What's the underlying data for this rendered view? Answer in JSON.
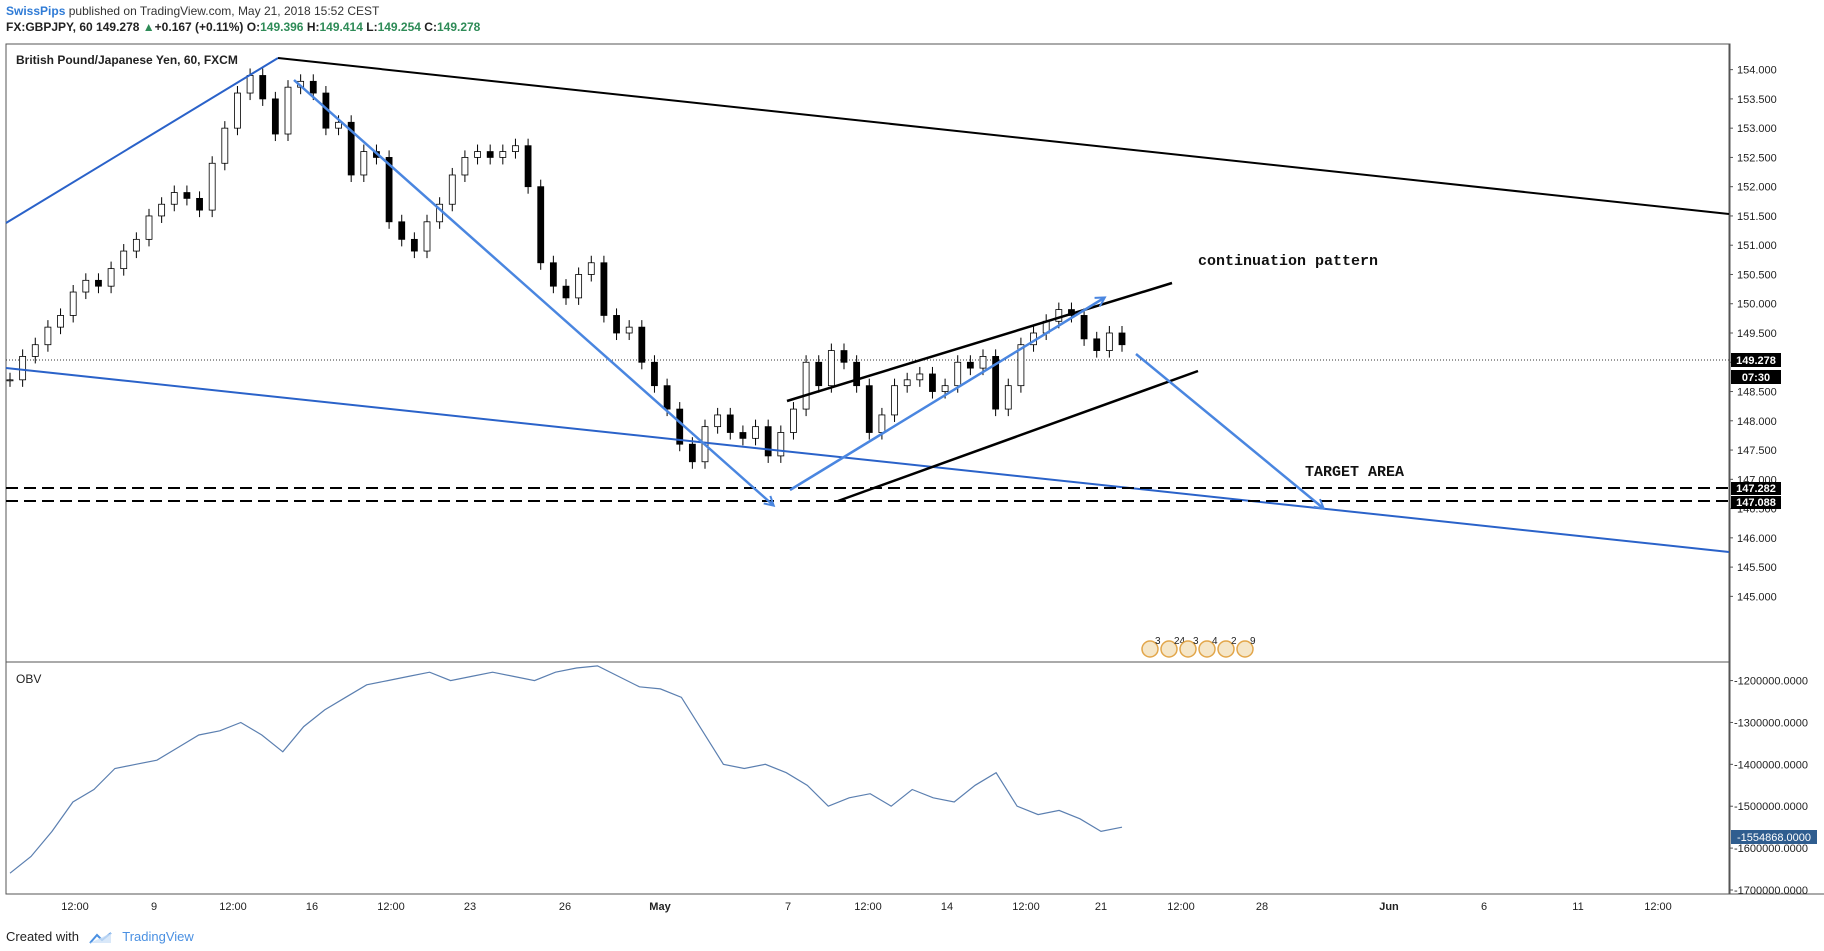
{
  "header": {
    "user": "SwissPips",
    "published": "published on TradingView.com, May 21, 2018 15:52 CEST",
    "symbol": "FX:GBPJPY, 60",
    "last": "149.278",
    "change": "+0.167 (+0.11%)",
    "open_label": "O:",
    "open": "149.396",
    "high_label": "H:",
    "high": "149.414",
    "low_label": "L:",
    "low": "149.254",
    "close_label": "C:",
    "close": "149.278"
  },
  "footer": {
    "created_with": "Created with",
    "brand": "TradingView"
  },
  "colors": {
    "up": "#2e8b57",
    "down": "#d9534f",
    "blue_line": "#3f7fdc",
    "obv_line": "#5b7fb0",
    "price_tag": "#000000",
    "obv_tag": "#2f5d8f"
  },
  "chart_data": [
    {
      "type": "line",
      "title": "British Pound/Japanese Yen, 60, FXCM",
      "ylim": [
        144.75,
        154.25
      ],
      "yticks": [
        "154.000",
        "153.500",
        "153.000",
        "152.500",
        "152.000",
        "151.500",
        "151.000",
        "150.500",
        "150.000",
        "149.500",
        "149.000",
        "148.500",
        "148.000",
        "147.500",
        "147.000",
        "146.500",
        "146.000",
        "145.500",
        "145.000"
      ],
      "xticks": [
        "12:00",
        "9",
        "12:00",
        "16",
        "12:00",
        "23",
        "26",
        "May",
        "7",
        "12:00",
        "14",
        "12:00",
        "21",
        "12:00",
        "28",
        "Jun",
        "6",
        "11",
        "12:00"
      ],
      "series": [
        {
          "values": [
            148.7,
            149.1,
            149.3,
            149.6,
            149.8,
            150.2,
            150.4,
            150.3,
            150.6,
            150.9,
            151.1,
            151.5,
            151.7,
            151.9,
            151.8,
            151.6,
            152.4,
            153.0,
            153.6,
            153.9,
            153.5,
            152.9,
            153.7,
            153.8,
            153.6,
            153.0,
            153.1,
            152.2,
            152.6,
            152.5,
            151.4,
            151.1,
            150.9,
            151.4,
            151.7,
            152.2,
            152.5,
            152.6,
            152.5,
            152.6,
            152.7,
            152.0,
            150.7,
            150.3,
            150.1,
            150.5,
            150.7,
            149.8,
            149.5,
            149.6,
            149.0,
            148.6,
            148.2,
            147.6,
            147.3,
            147.9,
            148.1,
            147.8,
            147.7,
            147.9,
            147.4,
            147.8,
            148.2,
            149.0,
            148.6,
            149.2,
            149.0,
            148.6,
            147.8,
            148.1,
            148.6,
            148.7,
            148.8,
            148.5,
            148.6,
            149.0,
            148.9,
            149.1,
            148.2,
            148.6,
            149.3,
            149.5,
            149.7,
            149.9,
            149.8,
            149.4,
            149.2,
            149.5,
            149.3
          ]
        }
      ],
      "last_price": "149.278",
      "countdown": "07:30",
      "levels": [
        "147.282",
        "147.088"
      ],
      "annotations": [
        "continuation pattern",
        "TARGET AREA"
      ],
      "event_labels": [
        "3",
        "24",
        "3",
        "4",
        "2",
        "9"
      ]
    },
    {
      "type": "line",
      "title": "OBV",
      "ylim": [
        -1700000,
        -1170000
      ],
      "yticks": [
        "-1200000.0000",
        "-1300000.0000",
        "-1400000.0000",
        "-1500000.0000",
        "-1600000.0000",
        "-1700000.0000"
      ],
      "series": [
        {
          "values": [
            -1660000,
            -1620000,
            -1560000,
            -1490000,
            -1460000,
            -1410000,
            -1400000,
            -1390000,
            -1360000,
            -1330000,
            -1320000,
            -1300000,
            -1330000,
            -1370000,
            -1310000,
            -1270000,
            -1240000,
            -1210000,
            -1200000,
            -1190000,
            -1180000,
            -1200000,
            -1190000,
            -1180000,
            -1190000,
            -1200000,
            -1180000,
            -1170000,
            -1165000,
            -1190000,
            -1215000,
            -1220000,
            -1240000,
            -1320000,
            -1400000,
            -1410000,
            -1400000,
            -1420000,
            -1450000,
            -1500000,
            -1480000,
            -1470000,
            -1500000,
            -1460000,
            -1480000,
            -1490000,
            -1450000,
            -1420000,
            -1500000,
            -1520000,
            -1510000,
            -1530000,
            -1560000,
            -1550000
          ]
        }
      ],
      "last_value": "-1554868.0000"
    }
  ]
}
